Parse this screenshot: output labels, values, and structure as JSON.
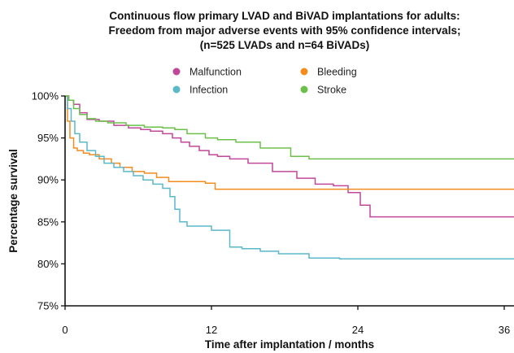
{
  "chart_data": {
    "type": "line",
    "title": [
      "Continuous flow primary LVAD and BiVAD implantations for adults:",
      "Freedom from major adverse events with 95% confidence intervals;",
      "(n=525 LVADs and n=64 BiVADs)"
    ],
    "xlabel": "Time after implantation / months",
    "ylabel": "Percentage survival",
    "xlim": [
      0,
      37
    ],
    "ylim": [
      75,
      100
    ],
    "x_ticks": [
      0,
      12,
      24,
      36
    ],
    "x_tick_labels": [
      "0",
      "12",
      "24",
      "36"
    ],
    "y_ticks": [
      75,
      80,
      85,
      90,
      95,
      100
    ],
    "y_tick_labels": [
      "75%",
      "80%",
      "85%",
      "90%",
      "95%",
      "100%"
    ],
    "grid": false,
    "legend_position": "top",
    "series": [
      {
        "name": "Malfunction",
        "color": "#c0479a",
        "x": [
          0,
          0.3,
          0.7,
          1.2,
          1.8,
          2.8,
          4.0,
          5.2,
          6.2,
          7.0,
          8.0,
          8.8,
          9.5,
          10.2,
          11.0,
          11.8,
          12.5,
          13.5,
          15.0,
          17.0,
          19.0,
          20.5,
          22.0,
          23.2,
          24.2,
          25.0,
          37
        ],
        "y": [
          100,
          99.5,
          99,
          98,
          97.2,
          97,
          96.5,
          96.2,
          96,
          95.8,
          95.5,
          95,
          94.5,
          94,
          93.5,
          93,
          92.8,
          92.5,
          92,
          91,
          90.2,
          89.5,
          89.3,
          88.5,
          87,
          85.6,
          85.6
        ]
      },
      {
        "name": "Bleeding",
        "color": "#f28c1e",
        "x": [
          0,
          0.2,
          0.4,
          0.7,
          1.0,
          1.5,
          2.0,
          2.8,
          3.8,
          4.5,
          5.5,
          6.5,
          7.5,
          8.5,
          10.0,
          11.5,
          12.3,
          37
        ],
        "y": [
          100,
          97,
          95,
          93.8,
          93.5,
          93.2,
          93,
          92.5,
          92,
          91.5,
          91,
          90.8,
          90.3,
          89.8,
          89.8,
          89.6,
          88.9,
          88.9
        ]
      },
      {
        "name": "Infection",
        "color": "#5ab8c8",
        "x": [
          0,
          0.2,
          0.5,
          0.8,
          1.2,
          1.8,
          2.5,
          3.2,
          4.0,
          4.8,
          5.6,
          6.4,
          7.2,
          8.0,
          8.6,
          9.0,
          9.4,
          10.0,
          11.0,
          12.0,
          13.5,
          14.5,
          16.0,
          17.5,
          20.0,
          22.5,
          37
        ],
        "y": [
          100,
          98.5,
          97,
          95.5,
          94.5,
          93.5,
          92.8,
          92,
          91.5,
          91,
          90.5,
          90,
          89.5,
          89,
          88,
          86.5,
          85,
          84.5,
          84.5,
          84,
          82,
          81.8,
          81.5,
          81.2,
          80.7,
          80.6,
          80.6
        ]
      },
      {
        "name": "Stroke",
        "color": "#6cc04a",
        "x": [
          0,
          0.3,
          0.7,
          1.2,
          1.8,
          2.5,
          3.5,
          5.0,
          6.5,
          8.0,
          9.0,
          10.0,
          11.5,
          12.5,
          14.0,
          16.0,
          18.5,
          20.0,
          37
        ],
        "y": [
          100,
          99.5,
          98.5,
          97.8,
          97.3,
          97,
          96.8,
          96.5,
          96.3,
          96.2,
          96,
          95.5,
          95,
          94.8,
          94.5,
          93.8,
          92.8,
          92.5,
          92.5
        ]
      }
    ],
    "legend_entries": [
      "Malfunction",
      "Bleeding",
      "Infection",
      "Stroke"
    ]
  }
}
